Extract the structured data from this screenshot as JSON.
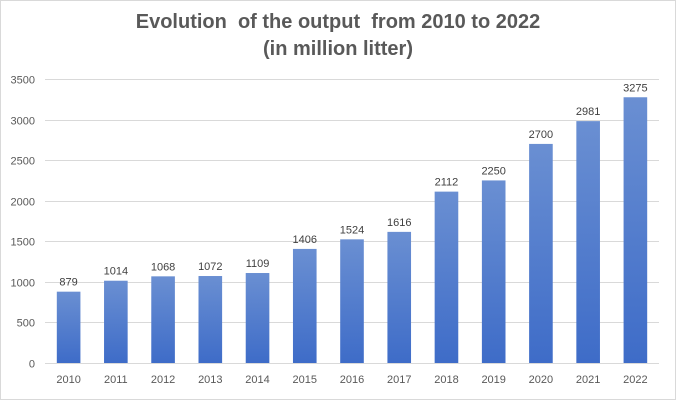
{
  "chart_data": {
    "type": "bar",
    "title_line1": "Evolution  of the output  from 2010 to 2022",
    "title_line2": "(in million litter)",
    "categories": [
      "2010",
      "2011",
      "2012",
      "2013",
      "2014",
      "2015",
      "2016",
      "2017",
      "2018",
      "2019",
      "2020",
      "2021",
      "2022"
    ],
    "values": [
      879,
      1014,
      1068,
      1072,
      1109,
      1406,
      1524,
      1616,
      2112,
      2250,
      2700,
      2981,
      3275
    ],
    "y_ticks": [
      0,
      500,
      1000,
      1500,
      2000,
      2500,
      3000,
      3500
    ],
    "ylim": [
      0,
      3500
    ],
    "grid": true,
    "legend": "none",
    "colors": {
      "bar_top": "#6a8fd2",
      "bar_bottom": "#3e6cc8",
      "grid": "#d9d9d9",
      "text": "#595959",
      "label": "#404040"
    }
  }
}
